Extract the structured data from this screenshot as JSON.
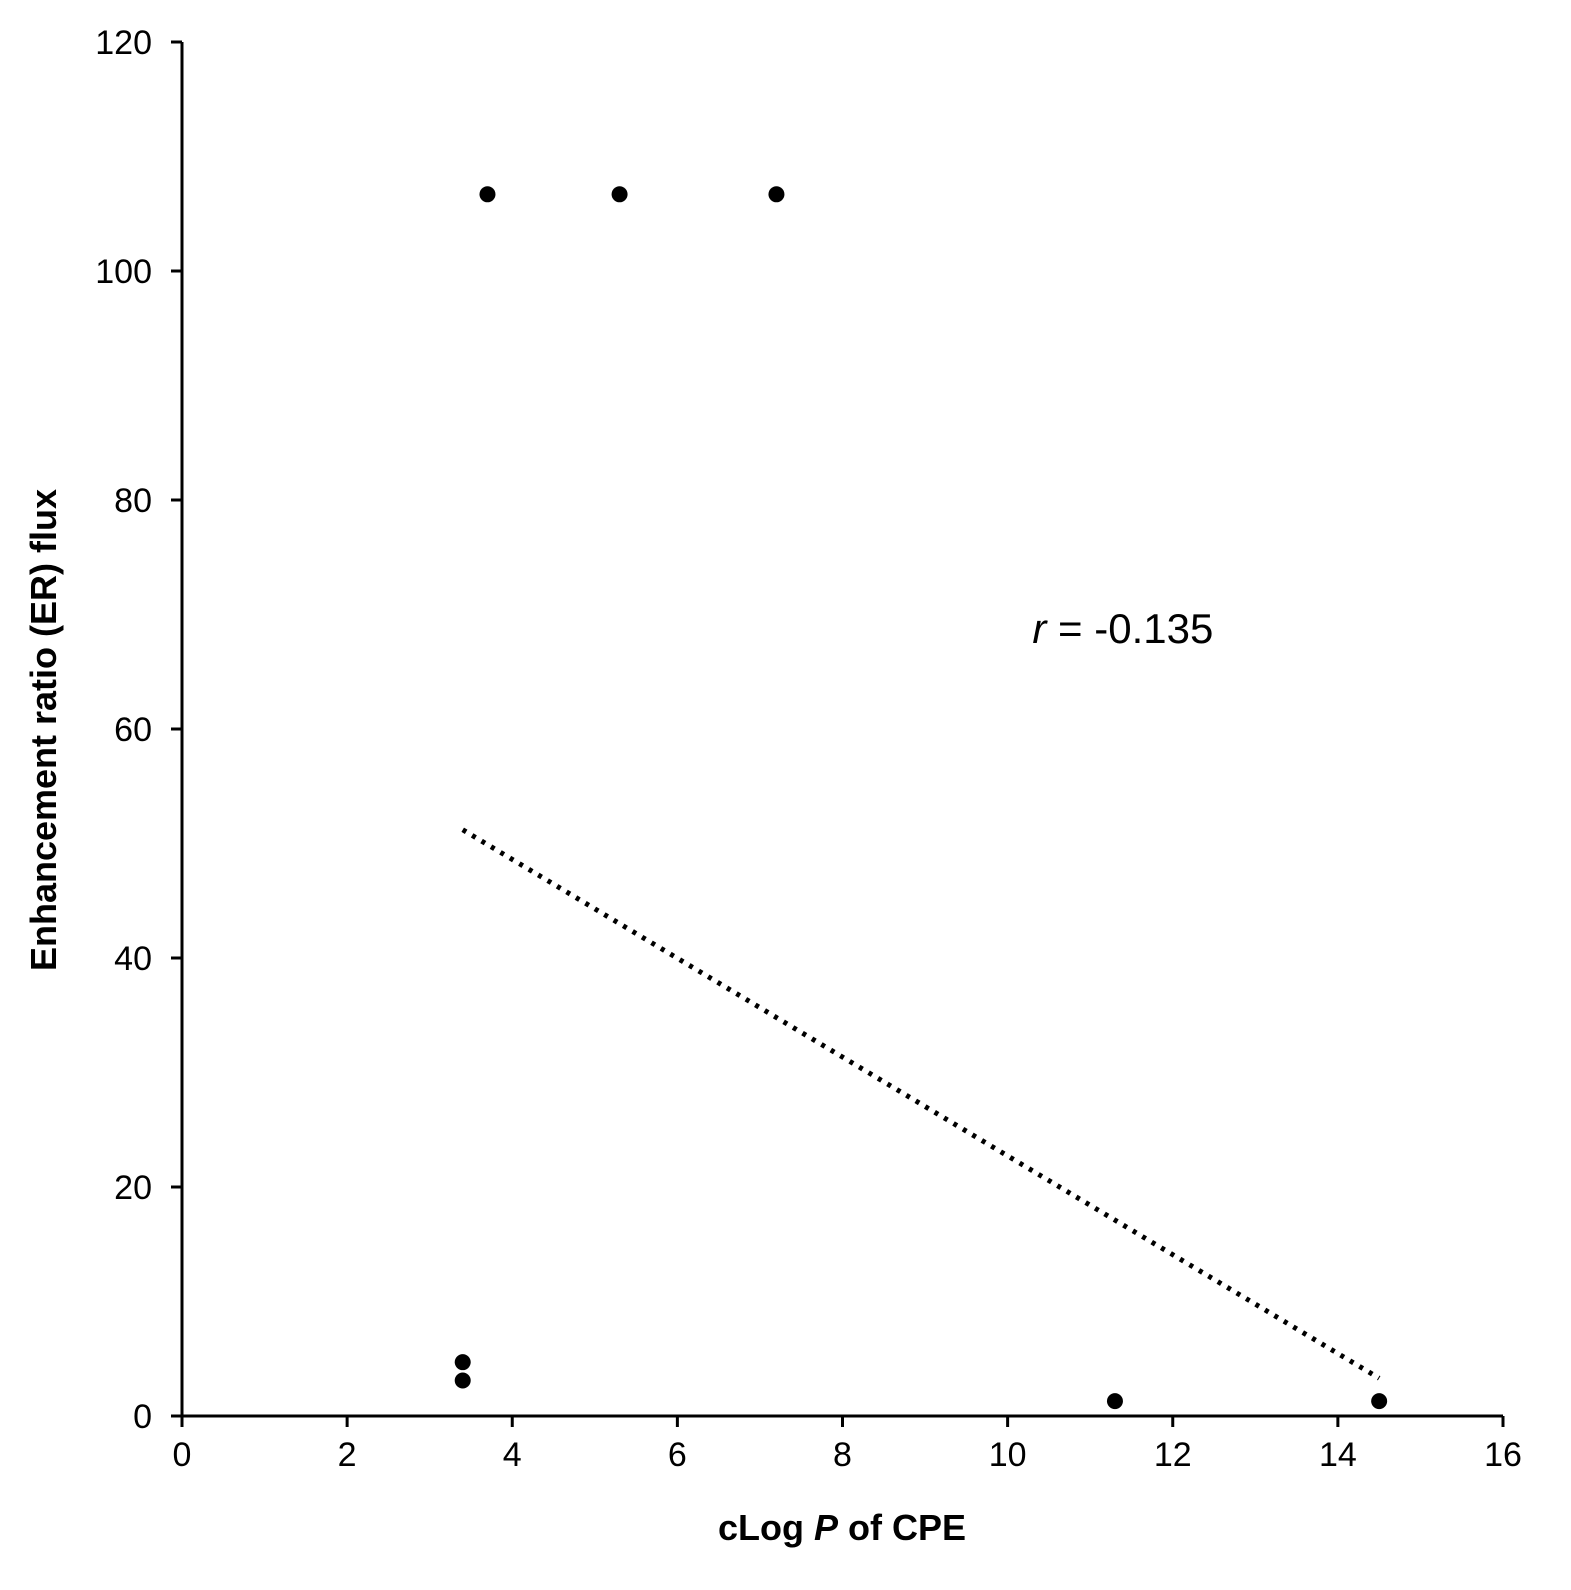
{
  "chart_data": {
    "type": "scatter",
    "title": "",
    "xlabel": {
      "prefix": "cLog ",
      "italic": "P",
      "suffix": " of CPE"
    },
    "ylabel": "Enhancement ratio (ER) flux",
    "xlim": [
      0,
      16
    ],
    "ylim": [
      0,
      120
    ],
    "xticks": [
      0,
      2,
      4,
      6,
      8,
      10,
      12,
      14,
      16
    ],
    "yticks": [
      0,
      20,
      40,
      60,
      80,
      100,
      120
    ],
    "grid": false,
    "legend": "none",
    "series": [
      {
        "points": [
          {
            "x": 3.7,
            "y": 106.7
          },
          {
            "x": 5.3,
            "y": 106.7
          },
          {
            "x": 7.2,
            "y": 106.7
          },
          {
            "x": 3.4,
            "y": 4.7
          },
          {
            "x": 3.4,
            "y": 3.1
          },
          {
            "x": 11.3,
            "y": 1.3
          },
          {
            "x": 14.5,
            "y": 1.3
          }
        ]
      }
    ],
    "trendline": {
      "style": "dotted",
      "from": {
        "x": 3.4,
        "y": 51.2
      },
      "to": {
        "x": 14.5,
        "y": 3.3
      }
    },
    "annotation": {
      "italic": "r",
      "text": " = -0.135",
      "x": 10.3,
      "y": 67.5
    },
    "colors": {
      "marker": "#000000",
      "axis": "#000000",
      "trendline": "#000000"
    }
  }
}
